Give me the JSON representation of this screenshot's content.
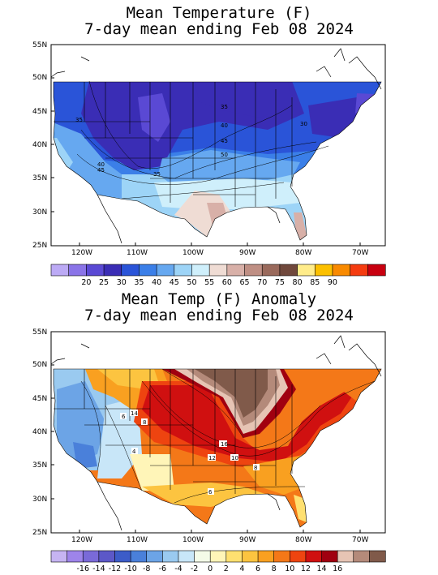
{
  "panel1": {
    "title_line1": "Mean Temperature (F)",
    "title_line2": "7-day mean ending Feb 08 2024",
    "lat_labels": [
      "55N",
      "50N",
      "45N",
      "40N",
      "35N",
      "30N",
      "25N"
    ],
    "lon_labels": [
      "120W",
      "110W",
      "100W",
      "90W",
      "80W",
      "70W"
    ],
    "contour_labels": [
      "35",
      "40",
      "45",
      "50",
      "35",
      "40",
      "45",
      "35",
      "30"
    ],
    "colorbar": {
      "colors": [
        "#bcaaf5",
        "#8a74e8",
        "#5a49d4",
        "#3a2db5",
        "#2a54d8",
        "#3b7fe8",
        "#66a8f0",
        "#9dd4f7",
        "#cfeffb",
        "#efdcd4",
        "#d8b0a8",
        "#bf8f84",
        "#9a6a5c",
        "#70483c",
        "#ffec8a",
        "#fcc000",
        "#f98a00",
        "#f53c10",
        "#c80010"
      ],
      "labels": [
        "20",
        "25",
        "30",
        "35",
        "40",
        "45",
        "50",
        "55",
        "60",
        "65",
        "70",
        "75",
        "80",
        "85",
        "90"
      ]
    }
  },
  "panel2": {
    "title_line1": "Mean Temp (F) Anomaly",
    "title_line2": "7-day mean ending Feb 08 2024",
    "lat_labels": [
      "55N",
      "50N",
      "45N",
      "40N",
      "35N",
      "30N",
      "25N"
    ],
    "lon_labels": [
      "120W",
      "110W",
      "100W",
      "90W",
      "80W",
      "70W"
    ],
    "contour_labels": [
      "16",
      "6",
      "8",
      "14",
      "12",
      "10",
      "8",
      "6",
      "4"
    ],
    "colorbar": {
      "colors": [
        "#c6b4f2",
        "#9e84ea",
        "#7a6ad8",
        "#5c58c8",
        "#3c5cc8",
        "#4a80da",
        "#6ca4e6",
        "#9acaf0",
        "#c8e6f8",
        "#f4fbe8",
        "#fff5b8",
        "#ffe070",
        "#fcc440",
        "#f9a020",
        "#f47818",
        "#ee4410",
        "#d01010",
        "#a00010",
        "#e6c4b4",
        "#b48a7a",
        "#805a4a"
      ],
      "labels": [
        "-16",
        "-14",
        "-12",
        "-10",
        "-8",
        "-6",
        "-4",
        "-2",
        "0",
        "2",
        "4",
        "6",
        "8",
        "10",
        "12",
        "14",
        "16"
      ]
    }
  }
}
